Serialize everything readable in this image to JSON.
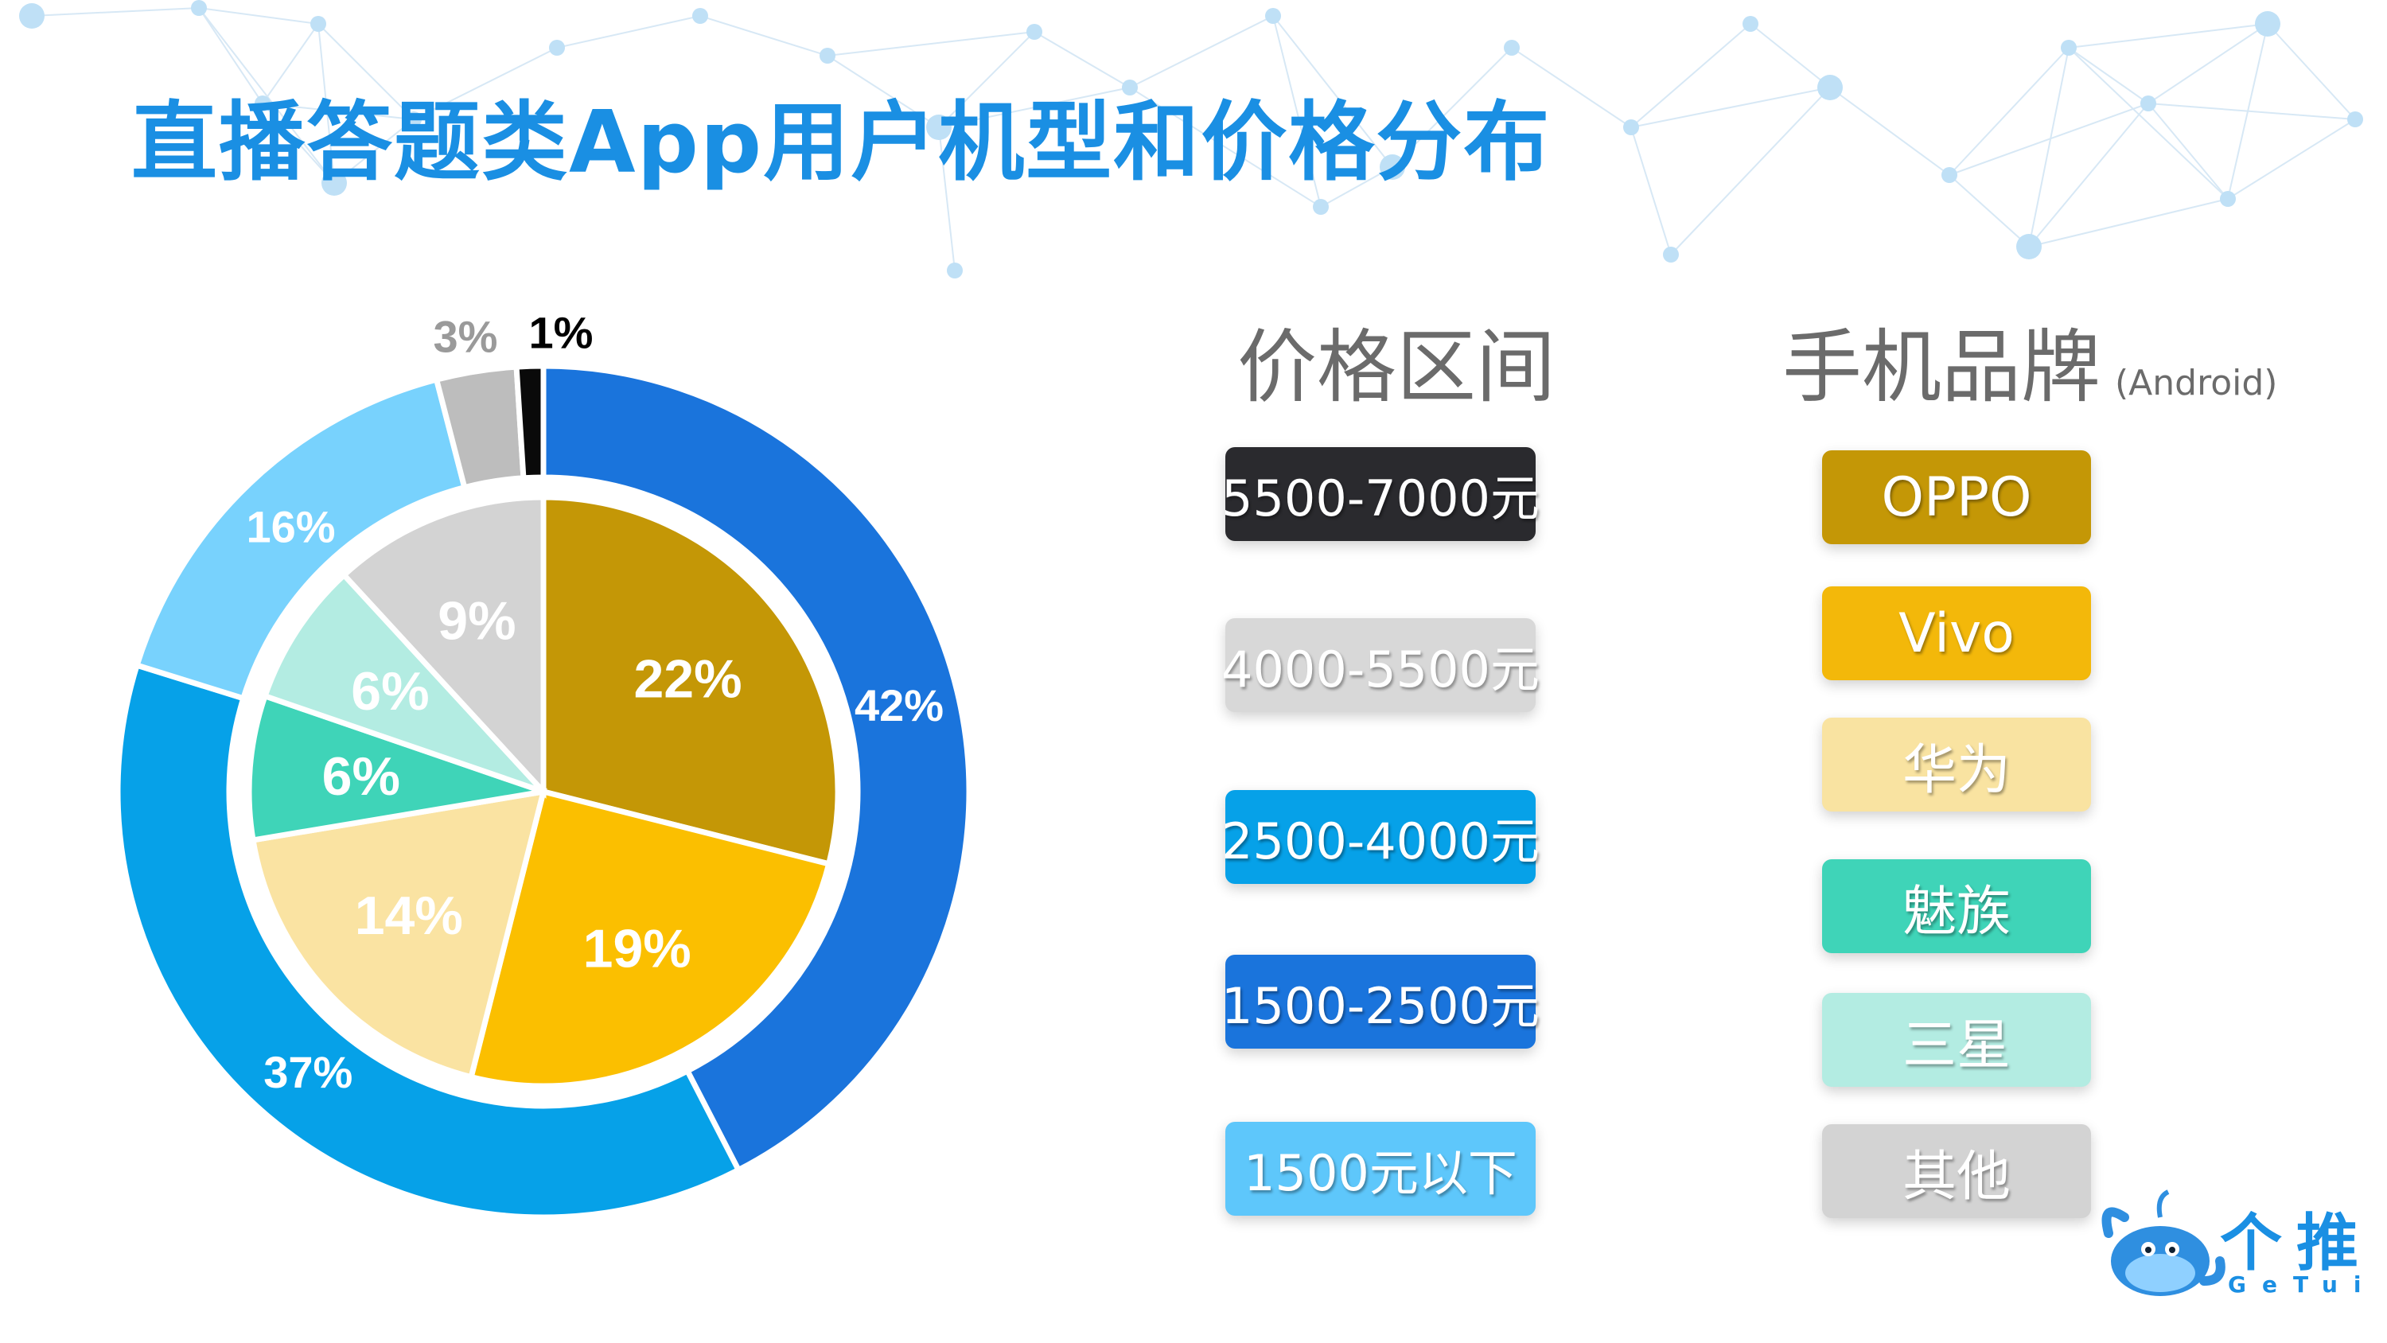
{
  "title": "直播答题类App用户机型和价格分布",
  "chart_data": {
    "type": "pie",
    "rings": [
      {
        "name": "",
        "labels": [
          "1500-2500元",
          "2500-4000元",
          "1500元以下",
          "4000-5500元",
          "5500-7000元"
        ],
        "values": [
          42,
          37,
          16,
          3,
          1
        ],
        "value_labels": [
          "42%",
          "37%",
          "16%",
          "3%",
          "1%"
        ],
        "colors": [
          "#1a74dc",
          "#06a1e8",
          "#78d2fd",
          "#bdbdbd",
          "#0a0a0a"
        ]
      },
      {
        "name": "",
        "labels": [
          "OPPO",
          "Vivo",
          "华为",
          "魅族",
          "三星",
          "其他"
        ],
        "values": [
          22,
          19,
          14,
          6,
          6,
          9
        ],
        "value_labels": [
          "22%",
          "19%",
          "14%",
          "6%",
          "6%",
          "9%"
        ],
        "colors": [
          "#c49706",
          "#fbbf00",
          "#fae3a2",
          "#3fd4b8",
          "#b3ece2",
          "#d3d3d3"
        ]
      }
    ]
  },
  "price_legend": {
    "heading": "价格区间",
    "items": [
      {
        "label": "5500-7000元",
        "color": "#2a2a2e"
      },
      {
        "label": "4000-5500元",
        "color": "#d8d8d8"
      },
      {
        "label": "2500-4000元",
        "color": "#06a1e8"
      },
      {
        "label": "1500-2500元",
        "color": "#1a74dc"
      },
      {
        "label": "1500元以下",
        "color": "#5ec7fb"
      }
    ]
  },
  "brand_legend": {
    "heading": "手机品牌",
    "subheading": "(Android)",
    "items": [
      {
        "label": "OPPO",
        "color": "#c49706"
      },
      {
        "label": "Vivo",
        "color": "#f3b80a"
      },
      {
        "label": "华为",
        "color": "#f9e3a1"
      },
      {
        "label": "魅族",
        "color": "#3fd4b8"
      },
      {
        "label": "三星",
        "color": "#b3ece2"
      },
      {
        "label": "其他",
        "color": "#d3d3d3"
      }
    ]
  },
  "logo": {
    "name_cn": "个推",
    "name_en": "GeTui",
    "icon": "whale-mascot-icon"
  }
}
